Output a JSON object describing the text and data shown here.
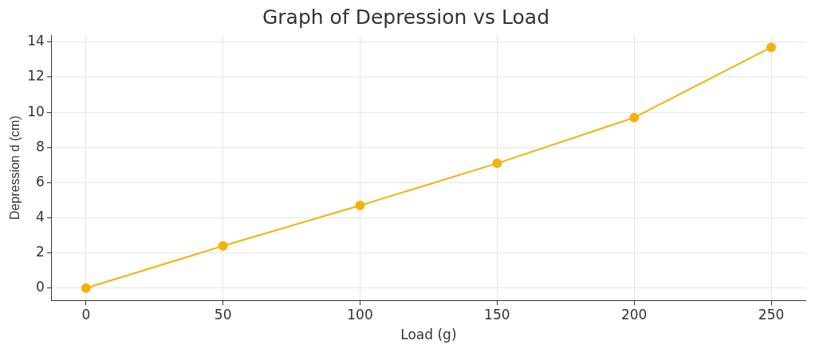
{
  "chart_data": {
    "type": "line",
    "title": "Graph of Depression vs Load",
    "xlabel": "Load (g)",
    "ylabel": "Depression d (cm)",
    "x": [
      0,
      50,
      100,
      150,
      200,
      250
    ],
    "series": [
      {
        "color": "#f5b10a",
        "values": [
          0,
          2.4,
          4.7,
          7.1,
          9.7,
          13.7
        ]
      }
    ],
    "xlim": [
      -12.5,
      262.5
    ],
    "xticks": [
      0,
      50,
      100,
      150,
      200,
      250
    ],
    "ylim": [
      -0.7,
      14.4
    ],
    "yticks": [
      0,
      2,
      4,
      6,
      8,
      10,
      12,
      14
    ],
    "grid": true,
    "marker": "circle",
    "line_style": "solid",
    "legend": false
  }
}
